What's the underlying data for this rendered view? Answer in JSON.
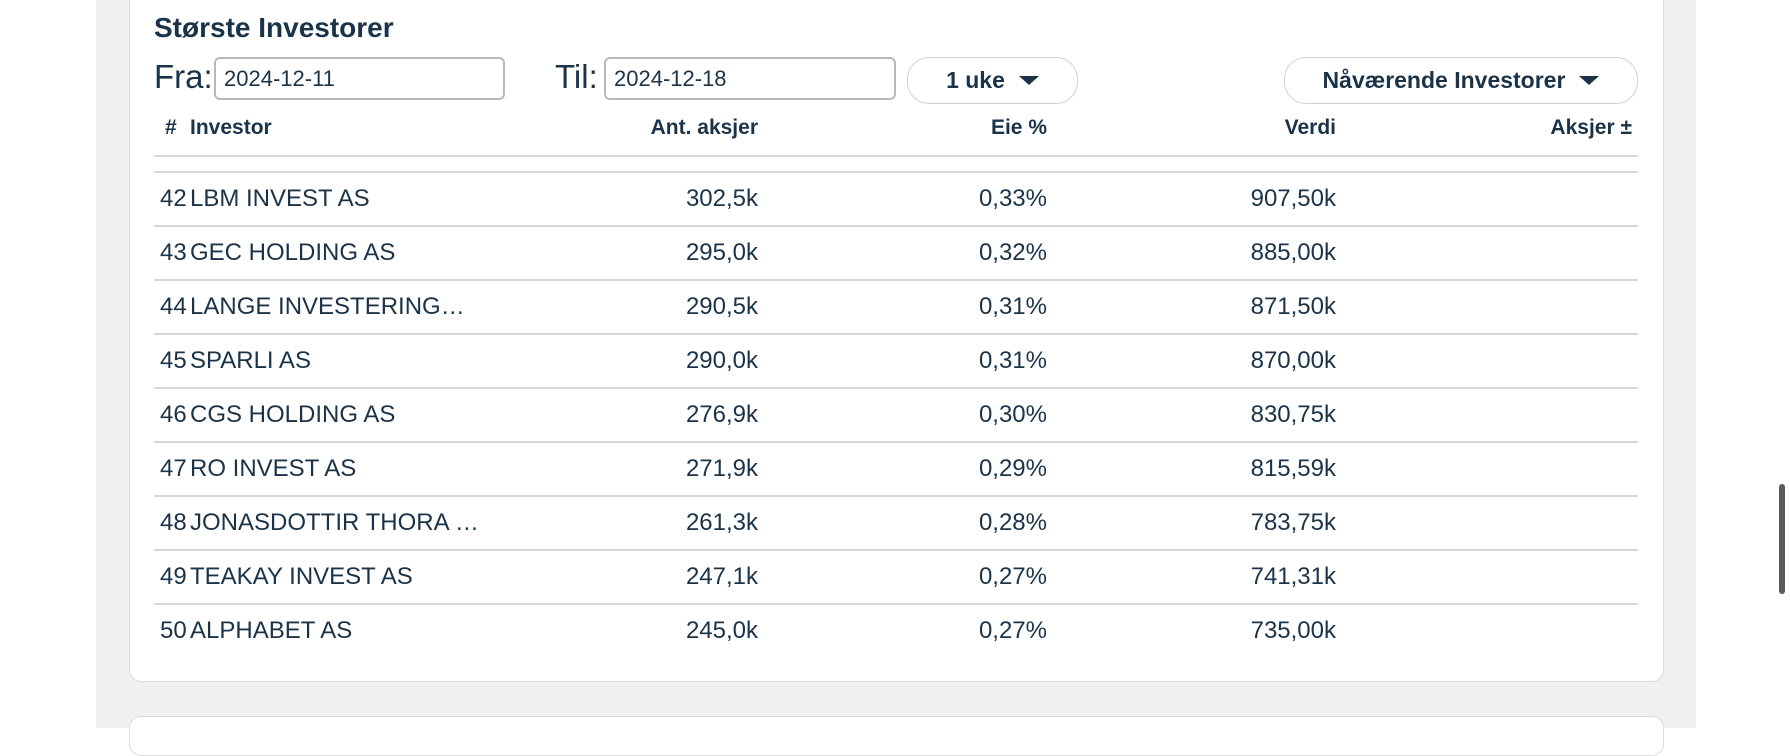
{
  "title": "Største Investorer",
  "filters": {
    "from_label": "Fra:",
    "from_value": "2024-12-11",
    "to_label": "Til:",
    "to_value": "2024-12-18",
    "period_label": "1 uke",
    "investor_type_label": "Nåværende Investorer"
  },
  "table": {
    "headers": {
      "rank": "#",
      "investor": "Investor",
      "shares": "Ant. aksjer",
      "ownership": "Eie %",
      "value": "Verdi",
      "change": "Aksjer ±"
    },
    "rows": [
      {
        "rank": "42",
        "investor": "LBM INVEST AS",
        "shares": "302,5k",
        "ownership": "0,33%",
        "value": "907,50k",
        "change": ""
      },
      {
        "rank": "43",
        "investor": "GEC HOLDING AS",
        "shares": "295,0k",
        "ownership": "0,32%",
        "value": "885,00k",
        "change": ""
      },
      {
        "rank": "44",
        "investor": "LANGE INVESTERINGER…",
        "shares": "290,5k",
        "ownership": "0,31%",
        "value": "871,50k",
        "change": ""
      },
      {
        "rank": "45",
        "investor": "SPARLI AS",
        "shares": "290,0k",
        "ownership": "0,31%",
        "value": "870,00k",
        "change": ""
      },
      {
        "rank": "46",
        "investor": "CGS HOLDING AS",
        "shares": "276,9k",
        "ownership": "0,30%",
        "value": "830,75k",
        "change": ""
      },
      {
        "rank": "47",
        "investor": "RO INVEST AS",
        "shares": "271,9k",
        "ownership": "0,29%",
        "value": "815,59k",
        "change": ""
      },
      {
        "rank": "48",
        "investor": "JONASDOTTIR THORA J…",
        "shares": "261,3k",
        "ownership": "0,28%",
        "value": "783,75k",
        "change": ""
      },
      {
        "rank": "49",
        "investor": "TEAKAY INVEST AS",
        "shares": "247,1k",
        "ownership": "0,27%",
        "value": "741,31k",
        "change": ""
      },
      {
        "rank": "50",
        "investor": "ALPHABET AS",
        "shares": "245,0k",
        "ownership": "0,27%",
        "value": "735,00k",
        "change": ""
      }
    ]
  },
  "colors": {
    "text": "#1b3348",
    "page_background": "#f0f0f0",
    "border": "#d8d8d8"
  }
}
